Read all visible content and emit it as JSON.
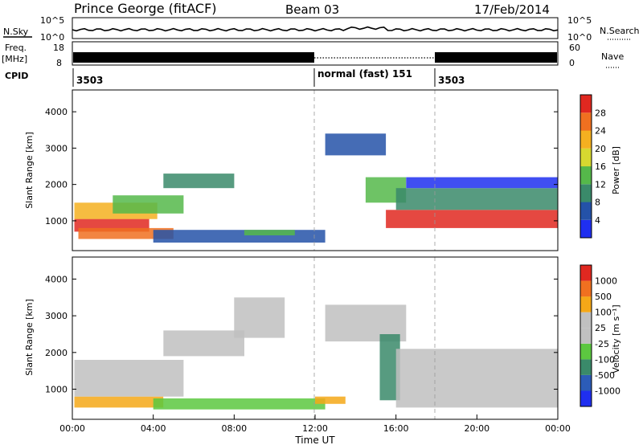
{
  "header": {
    "title": "Prince George (fitACF)",
    "beam": "Beam 03",
    "date": "17/Feb/2014"
  },
  "chart_data": [
    {
      "type": "line",
      "panel": "noise",
      "left_label": "N.Sky",
      "right_label": "N.Search",
      "ytick_labels": [
        "10^5",
        "10^0"
      ],
      "right_ytick_labels": [
        "10^5",
        "10^0"
      ]
    },
    {
      "type": "line",
      "panel": "frequency",
      "left_label": "Freq.",
      "left_unit": "[MHz]",
      "right_label": "Nave",
      "left_ticks": [
        18,
        8
      ],
      "right_ticks": [
        60,
        0
      ]
    },
    {
      "type": "table",
      "panel": "cpid",
      "label": "CPID",
      "segments": [
        {
          "start": 0,
          "end": 12,
          "text": "3503"
        },
        {
          "start": 12,
          "end": 18,
          "text": "normal (fast) 151"
        },
        {
          "start": 18,
          "end": 24,
          "text": "3503"
        }
      ]
    },
    {
      "type": "heatmap",
      "panel": "power",
      "ylabel": "Slant Range [km]",
      "ylim": [
        180,
        4600
      ],
      "yticks": [
        1000,
        2000,
        3000,
        4000
      ],
      "colorbar_label": "Power [dB]",
      "colorbar_ticks": [
        "4",
        "8",
        "12",
        "16",
        "20",
        "24",
        "28"
      ],
      "colors": [
        "#1f2ff0",
        "#2452a8",
        "#3a8a6a",
        "#55b84a",
        "#d7d830",
        "#f5b020",
        "#f07020",
        "#e02820"
      ],
      "bands": [
        {
          "start": 0.1,
          "end": 3.8,
          "r0": 700,
          "r1": 1050,
          "color": "#e02820"
        },
        {
          "start": 0.1,
          "end": 4.2,
          "r0": 1050,
          "r1": 1500,
          "color": "#f5b020"
        },
        {
          "start": 0.3,
          "end": 5.0,
          "r0": 500,
          "r1": 800,
          "color": "#f07020"
        },
        {
          "start": 2.0,
          "end": 5.5,
          "r0": 1200,
          "r1": 1700,
          "color": "#55b84a"
        },
        {
          "start": 4.5,
          "end": 8.0,
          "r0": 1900,
          "r1": 2300,
          "color": "#3a8a6a"
        },
        {
          "start": 4.0,
          "end": 12.5,
          "r0": 400,
          "r1": 750,
          "color": "#2452a8"
        },
        {
          "start": 8.5,
          "end": 11.0,
          "r0": 600,
          "r1": 750,
          "color": "#55b84a"
        },
        {
          "start": 12.5,
          "end": 15.5,
          "r0": 2800,
          "r1": 3400,
          "color": "#2452a8"
        },
        {
          "start": 14.5,
          "end": 16.5,
          "r0": 1500,
          "r1": 2200,
          "color": "#55b84a"
        },
        {
          "start": 15.5,
          "end": 24.0,
          "r0": 800,
          "r1": 1300,
          "color": "#e02820"
        },
        {
          "start": 16.0,
          "end": 24.0,
          "r0": 1300,
          "r1": 1900,
          "color": "#3a8a6a"
        },
        {
          "start": 16.5,
          "end": 24.0,
          "r0": 1900,
          "r1": 2200,
          "color": "#1f2ff0"
        }
      ]
    },
    {
      "type": "heatmap",
      "panel": "velocity",
      "ylabel": "Slant Range [km]",
      "xlabel": "Time UT",
      "ylim": [
        180,
        4600
      ],
      "yticks": [
        1000,
        2000,
        3000,
        4000
      ],
      "xlim": [
        0,
        24
      ],
      "xtick_labels": [
        "00:00",
        "04:00",
        "08:00",
        "12:00",
        "16:00",
        "20:00",
        "00:00"
      ],
      "colorbar_label": "Velocity [m s⁻¹]",
      "colorbar_ticks": [
        "1000",
        "500",
        "100",
        "25",
        "-25",
        "-100",
        "-500",
        "-1000"
      ],
      "colors": [
        "#1f2ff0",
        "#2c5cb8",
        "#3a8a6a",
        "#5cc840",
        "#c0c0c0",
        "#c0c0c0",
        "#f5a818",
        "#f07020",
        "#e02820"
      ],
      "bands": [
        {
          "start": 0.1,
          "end": 4.5,
          "r0": 500,
          "r1": 800,
          "color": "#f5a818"
        },
        {
          "start": 0.1,
          "end": 5.5,
          "r0": 800,
          "r1": 1800,
          "color": "#c0c0c0"
        },
        {
          "start": 4.5,
          "end": 8.5,
          "r0": 1900,
          "r1": 2600,
          "color": "#c0c0c0"
        },
        {
          "start": 4.0,
          "end": 12.5,
          "r0": 450,
          "r1": 750,
          "color": "#5cc840"
        },
        {
          "start": 8.0,
          "end": 10.5,
          "r0": 2400,
          "r1": 3500,
          "color": "#c0c0c0"
        },
        {
          "start": 12.0,
          "end": 13.5,
          "r0": 600,
          "r1": 800,
          "color": "#f5a818"
        },
        {
          "start": 12.5,
          "end": 16.5,
          "r0": 2300,
          "r1": 3300,
          "color": "#c0c0c0"
        },
        {
          "start": 15.2,
          "end": 16.2,
          "r0": 700,
          "r1": 2500,
          "color": "#3a8a6a"
        },
        {
          "start": 16.0,
          "end": 24.0,
          "r0": 500,
          "r1": 2100,
          "color": "#c0c0c0"
        }
      ]
    }
  ]
}
